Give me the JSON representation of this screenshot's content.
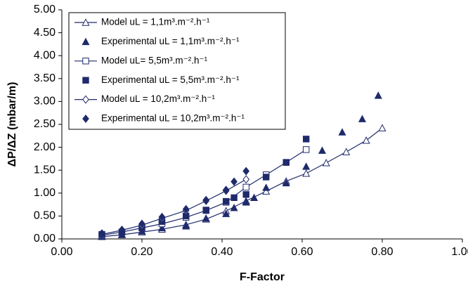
{
  "chart_data": {
    "type": "scatter",
    "ylabel": "ΔP/ΔZ (mbar/m)",
    "xlabel": "F-Factor",
    "xlim": [
      0,
      1
    ],
    "ylim": [
      0,
      5
    ],
    "xticks": [
      {
        "value": 0,
        "label": "0.00"
      },
      {
        "value": 0.2,
        "label": "0.20"
      },
      {
        "value": 0.4,
        "label": "0.40"
      },
      {
        "value": 0.6,
        "label": "0.60"
      },
      {
        "value": 0.8,
        "label": "0.80"
      },
      {
        "value": 1,
        "label": "1.00"
      }
    ],
    "yticks": [
      {
        "value": 0,
        "label": "0.00"
      },
      {
        "value": 0.5,
        "label": "0.50"
      },
      {
        "value": 1,
        "label": "1.00"
      },
      {
        "value": 1.5,
        "label": "1.50"
      },
      {
        "value": 2,
        "label": "2.00"
      },
      {
        "value": 2.5,
        "label": "2.50"
      },
      {
        "value": 3,
        "label": "3.00"
      },
      {
        "value": 3.5,
        "label": "3.50"
      },
      {
        "value": 4,
        "label": "4.00"
      },
      {
        "value": 4.5,
        "label": "4.50"
      },
      {
        "value": 5,
        "label": "5.00"
      }
    ],
    "legend": "upper left",
    "series": [
      {
        "name": "Model uL = 1,1m³.m⁻².h⁻¹",
        "color": "#1f2a6b",
        "marker": "triangle",
        "filled": false,
        "line": true,
        "x": [
          0.1,
          0.15,
          0.2,
          0.25,
          0.31,
          0.36,
          0.41,
          0.46,
          0.51,
          0.56,
          0.61,
          0.66,
          0.71,
          0.76,
          0.8
        ],
        "values": [
          0.05,
          0.09,
          0.15,
          0.21,
          0.31,
          0.43,
          0.61,
          0.83,
          1.04,
          1.26,
          1.43,
          1.66,
          1.9,
          2.15,
          2.42
        ]
      },
      {
        "name": "Experimental uL = 1,1m³.m⁻².h⁻¹",
        "color": "#1f2a6b",
        "marker": "triangle",
        "filled": true,
        "line": false,
        "x": [
          0.1,
          0.15,
          0.2,
          0.25,
          0.31,
          0.36,
          0.41,
          0.43,
          0.46,
          0.48,
          0.51,
          0.56,
          0.61,
          0.65,
          0.7,
          0.75,
          0.79
        ],
        "values": [
          0.06,
          0.1,
          0.17,
          0.24,
          0.28,
          0.45,
          0.55,
          0.68,
          0.8,
          0.9,
          1.12,
          1.22,
          1.58,
          1.93,
          2.33,
          2.62,
          3.13
        ]
      },
      {
        "name": "Model uL= 5,5m³.m⁻².h⁻¹",
        "color": "#1f2a6b",
        "marker": "square",
        "filled": false,
        "line": true,
        "x": [
          0.1,
          0.15,
          0.2,
          0.25,
          0.31,
          0.36,
          0.41,
          0.46,
          0.51,
          0.56,
          0.61
        ],
        "values": [
          0.08,
          0.15,
          0.24,
          0.33,
          0.47,
          0.62,
          0.8,
          1.13,
          1.4,
          1.67,
          1.95
        ]
      },
      {
        "name": "Experimental uL = 5,5m³.m⁻².h⁻¹",
        "color": "#1f2a6b",
        "marker": "square",
        "filled": true,
        "line": false,
        "x": [
          0.1,
          0.15,
          0.2,
          0.25,
          0.31,
          0.36,
          0.41,
          0.43,
          0.46,
          0.51,
          0.56,
          0.61
        ],
        "values": [
          0.1,
          0.15,
          0.25,
          0.38,
          0.5,
          0.63,
          0.82,
          0.9,
          0.97,
          1.35,
          1.67,
          2.18
        ]
      },
      {
        "name": "Model uL = 10,2m³.m⁻².h⁻¹",
        "color": "#1f2a6b",
        "marker": "diamond",
        "filled": false,
        "line": true,
        "x": [
          0.1,
          0.15,
          0.2,
          0.25,
          0.31,
          0.36,
          0.41,
          0.46
        ],
        "values": [
          0.1,
          0.19,
          0.3,
          0.45,
          0.62,
          0.83,
          1.05,
          1.3
        ]
      },
      {
        "name": "Experimental uL = 10,2m³.m⁻².h⁻¹",
        "color": "#1f2a6b",
        "marker": "diamond",
        "filled": true,
        "line": false,
        "x": [
          0.1,
          0.15,
          0.2,
          0.25,
          0.31,
          0.36,
          0.41,
          0.43,
          0.46
        ],
        "values": [
          0.12,
          0.2,
          0.33,
          0.48,
          0.65,
          0.85,
          1.07,
          1.25,
          1.48
        ]
      }
    ]
  }
}
